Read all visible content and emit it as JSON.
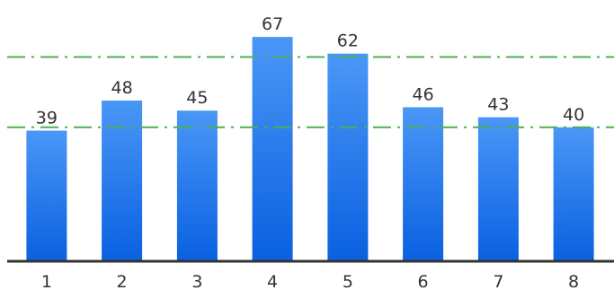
{
  "chart_data": {
    "type": "bar",
    "title": "",
    "xlabel": "",
    "ylabel": "",
    "categories": [
      "1",
      "2",
      "3",
      "4",
      "5",
      "6",
      "7",
      "8"
    ],
    "values": [
      39,
      48,
      45,
      67,
      62,
      46,
      43,
      40
    ],
    "ylim": [
      0,
      75
    ],
    "grid": false,
    "legend": "none",
    "show_value_labels": true,
    "reference_lines": [
      {
        "value": 61,
        "style": "dash-dot",
        "color": "#4caf50"
      },
      {
        "value": 40,
        "style": "dash-dot",
        "color": "#4caf50"
      }
    ],
    "colors": {
      "bar_top": "#4a97f7",
      "bar_bottom": "#0a60e0",
      "axis": "#333333",
      "text": "#333333"
    }
  }
}
